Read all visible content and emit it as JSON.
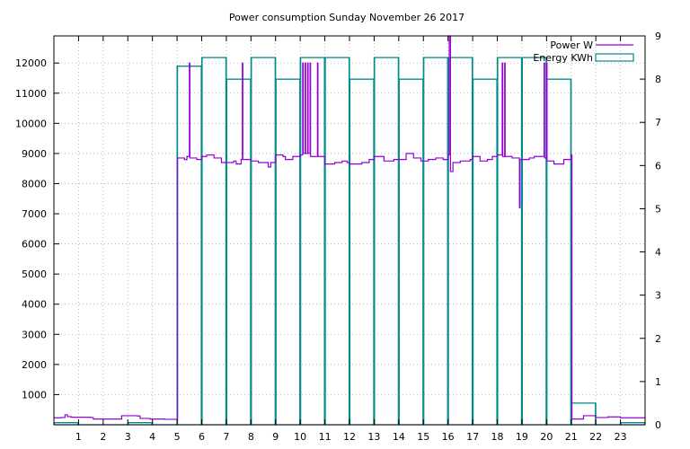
{
  "chart_data": {
    "type": "line",
    "title": "Power consumption Sunday November 26 2017",
    "xlabel": "",
    "ylabel": "",
    "y2label": "",
    "xlim": [
      0,
      24
    ],
    "ylim": [
      0,
      12900
    ],
    "y2lim": [
      0,
      9
    ],
    "x_ticks": [
      1,
      2,
      3,
      4,
      5,
      6,
      7,
      8,
      9,
      10,
      11,
      12,
      13,
      14,
      15,
      16,
      17,
      18,
      19,
      20,
      21,
      22,
      23
    ],
    "y_ticks": [
      1000,
      2000,
      3000,
      4000,
      5000,
      6000,
      7000,
      8000,
      9000,
      10000,
      11000,
      12000
    ],
    "y2_ticks": [
      0,
      1,
      2,
      3,
      4,
      5,
      6,
      7,
      8,
      9
    ],
    "grid": true,
    "legend_position": "top-right",
    "series": [
      {
        "name": "Power W",
        "axis": "y",
        "style": "steps",
        "color": "#9400d3",
        "points": [
          [
            0,
            230
          ],
          [
            0.3,
            240
          ],
          [
            0.45,
            330
          ],
          [
            0.55,
            270
          ],
          [
            0.7,
            250
          ],
          [
            1,
            250
          ],
          [
            1.5,
            240
          ],
          [
            1.6,
            190
          ],
          [
            2,
            190
          ],
          [
            2.7,
            190
          ],
          [
            2.75,
            300
          ],
          [
            3,
            300
          ],
          [
            3.4,
            290
          ],
          [
            3.5,
            210
          ],
          [
            3.9,
            190
          ],
          [
            4.5,
            180
          ],
          [
            4.95,
            180
          ],
          [
            5.02,
            8850
          ],
          [
            5.3,
            8800
          ],
          [
            5.4,
            8900
          ],
          [
            5.5,
            12000
          ],
          [
            5.52,
            8850
          ],
          [
            5.8,
            8800
          ],
          [
            6,
            8900
          ],
          [
            6.2,
            8950
          ],
          [
            6.5,
            8850
          ],
          [
            6.8,
            8700
          ],
          [
            7,
            8700
          ],
          [
            7.3,
            8750
          ],
          [
            7.4,
            8650
          ],
          [
            7.6,
            8800
          ],
          [
            7.65,
            12000
          ],
          [
            7.67,
            8800
          ],
          [
            8,
            8750
          ],
          [
            8.3,
            8700
          ],
          [
            8.7,
            8550
          ],
          [
            8.8,
            8700
          ],
          [
            9,
            8950
          ],
          [
            9.3,
            8900
          ],
          [
            9.4,
            8800
          ],
          [
            9.7,
            8900
          ],
          [
            10,
            8950
          ],
          [
            10.1,
            12000
          ],
          [
            10.12,
            9000
          ],
          [
            10.2,
            12000
          ],
          [
            10.22,
            9000
          ],
          [
            10.3,
            12000
          ],
          [
            10.32,
            9000
          ],
          [
            10.4,
            12000
          ],
          [
            10.42,
            8900
          ],
          [
            10.7,
            12000
          ],
          [
            10.72,
            8900
          ],
          [
            11,
            8650
          ],
          [
            11.4,
            8700
          ],
          [
            11.7,
            8750
          ],
          [
            11.9,
            8700
          ],
          [
            12,
            8650
          ],
          [
            12.5,
            8700
          ],
          [
            12.8,
            8800
          ],
          [
            13,
            8900
          ],
          [
            13.4,
            8750
          ],
          [
            13.8,
            8800
          ],
          [
            14,
            8800
          ],
          [
            14.3,
            9000
          ],
          [
            14.6,
            8850
          ],
          [
            14.9,
            8750
          ],
          [
            15.2,
            8800
          ],
          [
            15.5,
            8850
          ],
          [
            15.8,
            8800
          ],
          [
            16,
            8950
          ],
          [
            16.05,
            13000
          ],
          [
            16.1,
            8400
          ],
          [
            16.2,
            8700
          ],
          [
            16.5,
            8750
          ],
          [
            16.9,
            8800
          ],
          [
            17,
            8900
          ],
          [
            17.3,
            8750
          ],
          [
            17.6,
            8800
          ],
          [
            17.8,
            8900
          ],
          [
            18,
            8950
          ],
          [
            18.2,
            12000
          ],
          [
            18.22,
            8900
          ],
          [
            18.3,
            12000
          ],
          [
            18.32,
            8900
          ],
          [
            18.6,
            8850
          ],
          [
            18.9,
            7200
          ],
          [
            18.92,
            8800
          ],
          [
            19.3,
            8850
          ],
          [
            19.5,
            8900
          ],
          [
            19.9,
            12000
          ],
          [
            19.92,
            8850
          ],
          [
            20,
            12000
          ],
          [
            20.02,
            8750
          ],
          [
            20.3,
            8650
          ],
          [
            20.7,
            8800
          ],
          [
            21,
            8950
          ],
          [
            21.03,
            190
          ],
          [
            21.5,
            300
          ],
          [
            22,
            240
          ],
          [
            22.5,
            260
          ],
          [
            23,
            230
          ],
          [
            24,
            230
          ]
        ]
      },
      {
        "name": "Energy KWh",
        "axis": "y2",
        "style": "histeps",
        "color": "#008b8b",
        "values": [
          0.05,
          0.0,
          0.0,
          0.05,
          0.0,
          8.3,
          8.5,
          8.0,
          8.5,
          8.0,
          8.5,
          8.5,
          8.0,
          8.5,
          8.0,
          8.5,
          8.5,
          8.0,
          8.5,
          8.5,
          8.0,
          0.5,
          0.0,
          0.05
        ]
      }
    ]
  }
}
